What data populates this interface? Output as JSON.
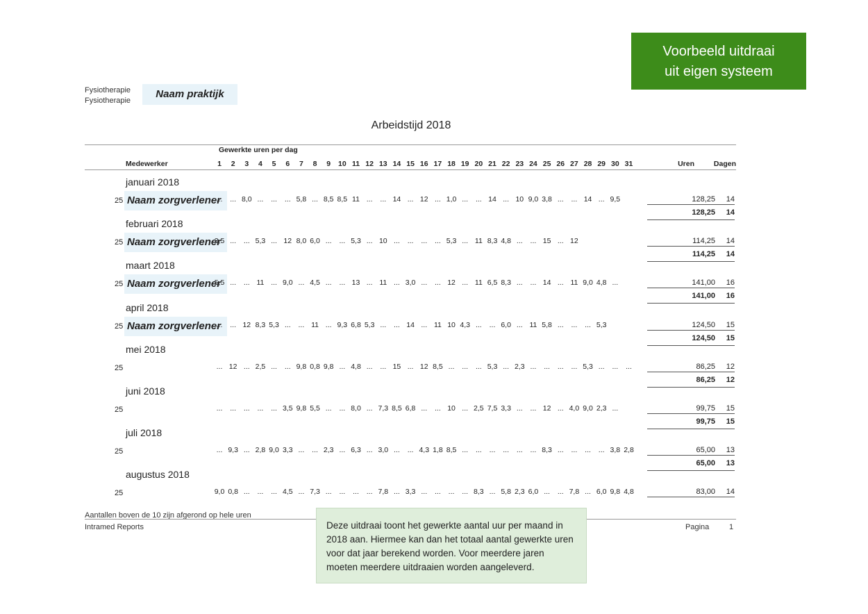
{
  "banner": {
    "line1": "Voorbeeld uitdraai",
    "line2": "uit eigen systeem"
  },
  "header": {
    "category1": "Fysiotherapie",
    "category2": "Fysiotherapie",
    "practice": "Naam praktijk"
  },
  "report_title": "Arbeidstijd 2018",
  "columns": {
    "group_label": "Gewerkte uren per dag",
    "employee": "Medewerker",
    "days": [
      "1",
      "2",
      "3",
      "4",
      "5",
      "6",
      "7",
      "8",
      "9",
      "10",
      "11",
      "12",
      "13",
      "14",
      "15",
      "16",
      "17",
      "18",
      "19",
      "20",
      "21",
      "22",
      "23",
      "24",
      "25",
      "26",
      "27",
      "28",
      "29",
      "30",
      "31"
    ],
    "hours": "Uren",
    "days_total": "Dagen"
  },
  "months": [
    {
      "label": "januari 2018",
      "code": "25",
      "employee": "Naam zorgverlener",
      "cells": [
        "...",
        "...",
        "8,0",
        "...",
        "...",
        "...",
        "5,8",
        "...",
        "8,5",
        "8,5",
        "11",
        "...",
        "...",
        "14",
        "...",
        "12",
        "...",
        "1,0",
        "...",
        "...",
        "14",
        "...",
        "10",
        "9,0",
        "3,8",
        "...",
        "...",
        "14",
        "...",
        "9,5",
        ""
      ],
      "hours": "128,25",
      "days": "14",
      "total_hours": "128,25",
      "total_days": "14"
    },
    {
      "label": "februari 2018",
      "code": "25",
      "employee": "Naam zorgverlener",
      "cells": [
        "3,5",
        "...",
        "...",
        "5,3",
        "...",
        "12",
        "8,0",
        "6,0",
        "...",
        "...",
        "5,3",
        "...",
        "10",
        "...",
        "...",
        "...",
        "...",
        "5,3",
        "...",
        "11",
        "8,3",
        "4,8",
        "...",
        "...",
        "15",
        "...",
        "12",
        "",
        "",
        "",
        ""
      ],
      "hours": "114,25",
      "days": "14",
      "total_hours": "114,25",
      "total_days": "14"
    },
    {
      "label": "maart 2018",
      "code": "25",
      "employee": "Naam zorgverlener",
      "cells": [
        "5,5",
        "...",
        "...",
        "11",
        "...",
        "9,0",
        "...",
        "4,5",
        "...",
        "...",
        "13",
        "...",
        "11",
        "...",
        "3,0",
        "...",
        "...",
        "12",
        "...",
        "11",
        "6,5",
        "8,3",
        "...",
        "...",
        "14",
        "...",
        "11",
        "9,0",
        "4,8",
        "...",
        ""
      ],
      "hours": "141,00",
      "days": "16",
      "total_hours": "141,00",
      "total_days": "16"
    },
    {
      "label": "april 2018",
      "code": "25",
      "employee": "Naam zorgverlener",
      "cells": [
        "...",
        "...",
        "12",
        "8,3",
        "5,3",
        "...",
        "...",
        "11",
        "...",
        "9,3",
        "6,8",
        "5,3",
        "...",
        "...",
        "14",
        "...",
        "11",
        "10",
        "4,3",
        "...",
        "...",
        "6,0",
        "...",
        "11",
        "5,8",
        "...",
        "...",
        "...",
        "5,3",
        "",
        ""
      ],
      "hours": "124,50",
      "days": "15",
      "total_hours": "124,50",
      "total_days": "15"
    },
    {
      "label": "mei 2018",
      "code": "25",
      "employee": "",
      "cells": [
        "...",
        "12",
        "...",
        "2,5",
        "...",
        "...",
        "9,8",
        "0,8",
        "9,8",
        "...",
        "4,8",
        "...",
        "...",
        "15",
        "...",
        "12",
        "8,5",
        "...",
        "...",
        "...",
        "5,3",
        "...",
        "2,3",
        "...",
        "...",
        "...",
        "...",
        "5,3",
        "...",
        "...",
        "..."
      ],
      "hours": "86,25",
      "days": "12",
      "total_hours": "86,25",
      "total_days": "12"
    },
    {
      "label": "juni 2018",
      "code": "25",
      "employee": "",
      "cells": [
        "...",
        "...",
        "...",
        "...",
        "...",
        "3,5",
        "9,8",
        "5,5",
        "...",
        "...",
        "8,0",
        "...",
        "7,3",
        "8,5",
        "6,8",
        "...",
        "...",
        "10",
        "...",
        "2,5",
        "7,5",
        "3,3",
        "...",
        "...",
        "12",
        "...",
        "4,0",
        "9,0",
        "2,3",
        "...",
        ""
      ],
      "hours": "99,75",
      "days": "15",
      "total_hours": "99,75",
      "total_days": "15"
    },
    {
      "label": "juli 2018",
      "code": "25",
      "employee": "",
      "cells": [
        "...",
        "9,3",
        "...",
        "2,8",
        "9,0",
        "3,3",
        "...",
        "...",
        "2,3",
        "...",
        "6,3",
        "...",
        "3,0",
        "...",
        "...",
        "4,3",
        "1,8",
        "8,5",
        "...",
        "...",
        "...",
        "...",
        "...",
        "...",
        "8,3",
        "...",
        "...",
        "...",
        "...",
        "3,8",
        "2,8"
      ],
      "hours": "65,00",
      "days": "13",
      "total_hours": "65,00",
      "total_days": "13"
    },
    {
      "label": "augustus 2018",
      "code": "25",
      "employee": "",
      "cells": [
        "9,0",
        "0,8",
        "...",
        "...",
        "...",
        "4,5",
        "...",
        "7,3",
        "...",
        "...",
        "...",
        "...",
        "7,8",
        "...",
        "3,3",
        "...",
        "...",
        "...",
        "...",
        "8,3",
        "...",
        "5,8",
        "2,3",
        "6,0",
        "...",
        "...",
        "7,8",
        "...",
        "6,0",
        "9,8",
        "4,8"
      ],
      "hours": "83,00",
      "days": "14"
    }
  ],
  "footer": {
    "note": "Aantallen boven de 10 zijn afgerond op hele uren",
    "brand": "Intramed Reports",
    "page_label": "Pagina",
    "page_number": "1"
  },
  "callout": "Deze uitdraai toont het gewerkte aantal uur per maand in 2018 aan. Hiermee kan dan het totaal aantal gewerkte uren voor dat jaar berekend worden. Voor meerdere jaren moeten meerdere uitdraaien worden aangeleverd."
}
